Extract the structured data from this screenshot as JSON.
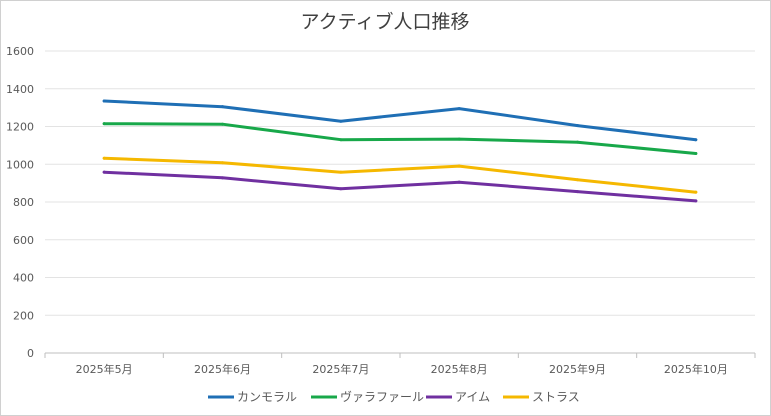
{
  "chart_data": {
    "type": "line",
    "title": "アクティブ人口推移",
    "xlabel": "",
    "ylabel": "",
    "categories": [
      "2025年5月",
      "2025年6月",
      "2025年7月",
      "2025年8月",
      "2025年9月",
      "2025年10月"
    ],
    "ylim": [
      0,
      1600
    ],
    "yticks": [
      "0",
      "200",
      "400",
      "600",
      "800",
      "1000",
      "1200",
      "1400",
      "1600"
    ],
    "grid": true,
    "legend_position": "bottom",
    "series": [
      {
        "name": "カンモラル",
        "color": "#1f6fb5",
        "values": [
          1335,
          1305,
          1228,
          1295,
          1205,
          1130
        ]
      },
      {
        "name": "ヴァラファール",
        "color": "#18a84a",
        "values": [
          1215,
          1212,
          1130,
          1133,
          1117,
          1057
        ]
      },
      {
        "name": "アイム",
        "color": "#7030a0",
        "values": [
          958,
          928,
          870,
          905,
          855,
          806
        ]
      },
      {
        "name": "ストラス",
        "color": "#f5b800",
        "values": [
          1032,
          1008,
          958,
          990,
          918,
          852
        ]
      }
    ]
  }
}
